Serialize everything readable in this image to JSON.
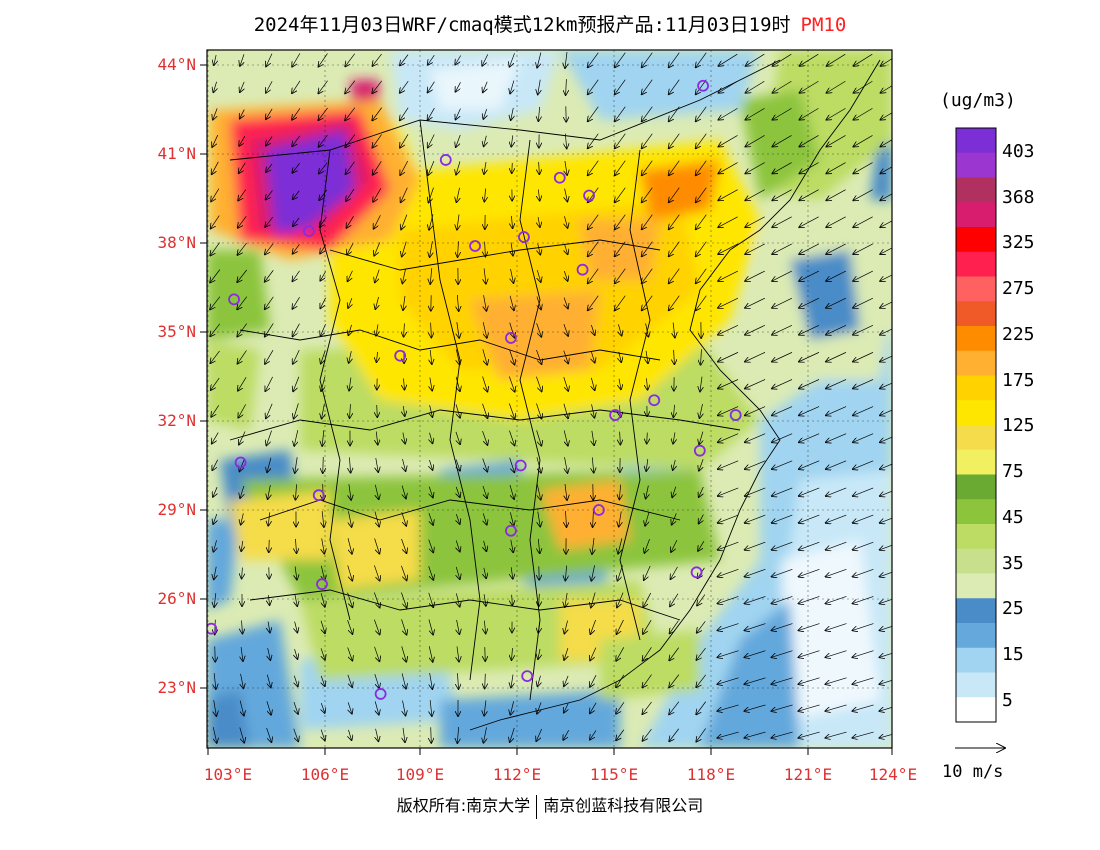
{
  "title": {
    "main": "2024年11月03日WRF/cmaq模式12km预报产品:11月03日19时",
    "variable": "PM10"
  },
  "axes": {
    "lat_labels": [
      "44°N",
      "41°N",
      "38°N",
      "35°N",
      "32°N",
      "29°N",
      "26°N",
      "23°N"
    ],
    "lon_labels": [
      "103°E",
      "106°E",
      "109°E",
      "112°E",
      "115°E",
      "118°E",
      "121°E",
      "124°E"
    ]
  },
  "colorbar": {
    "unit": "(ug/m3)",
    "labels": [
      "403",
      "368",
      "325",
      "275",
      "225",
      "175",
      "125",
      "75",
      "45",
      "35",
      "25",
      "15",
      "5"
    ],
    "colors": [
      "#7d2fd6",
      "#9b37d0",
      "#b03060",
      "#d81c6e",
      "#ff0000",
      "#ff2050",
      "#ff6060",
      "#f05a28",
      "#ff8c00",
      "#ffb030",
      "#ffd200",
      "#ffe600",
      "#f5dc4a",
      "#f0f060",
      "#6aaa32",
      "#8cc43c",
      "#bcdc64",
      "#c8e08c",
      "#dcebb4",
      "#4a8cc8",
      "#64a8dc",
      "#a0d4f0",
      "#c8e8f8",
      "#ffffff"
    ]
  },
  "wind_legend": {
    "label": "10 m/s"
  },
  "copyright": {
    "left": "版权所有:南京大学",
    "right": "南京创蓝科技有限公司"
  },
  "map": {
    "lon_range": [
      103,
      124
    ],
    "lat_range": [
      21,
      44.5
    ],
    "markers": [
      {
        "lat": 43.3,
        "lon": 118.2
      },
      {
        "lat": 40.8,
        "lon": 110.3
      },
      {
        "lat": 40.2,
        "lon": 113.8
      },
      {
        "lat": 39.6,
        "lon": 114.7
      },
      {
        "lat": 38.4,
        "lon": 106.1
      },
      {
        "lat": 38.2,
        "lon": 112.7
      },
      {
        "lat": 37.9,
        "lon": 111.2
      },
      {
        "lat": 37.1,
        "lon": 114.5
      },
      {
        "lat": 36.1,
        "lon": 103.8
      },
      {
        "lat": 34.8,
        "lon": 112.3
      },
      {
        "lat": 34.2,
        "lon": 108.9
      },
      {
        "lat": 32.7,
        "lon": 116.7
      },
      {
        "lat": 32.2,
        "lon": 115.5
      },
      {
        "lat": 32.2,
        "lon": 119.2
      },
      {
        "lat": 31.0,
        "lon": 118.1
      },
      {
        "lat": 30.6,
        "lon": 104.0
      },
      {
        "lat": 30.5,
        "lon": 112.6
      },
      {
        "lat": 29.5,
        "lon": 106.4
      },
      {
        "lat": 29.0,
        "lon": 115.0
      },
      {
        "lat": 28.3,
        "lon": 112.3
      },
      {
        "lat": 26.9,
        "lon": 118.0
      },
      {
        "lat": 26.5,
        "lon": 106.5
      },
      {
        "lat": 25.0,
        "lon": 103.1
      },
      {
        "lat": 23.4,
        "lon": 112.8
      },
      {
        "lat": 22.8,
        "lon": 108.3
      }
    ]
  }
}
